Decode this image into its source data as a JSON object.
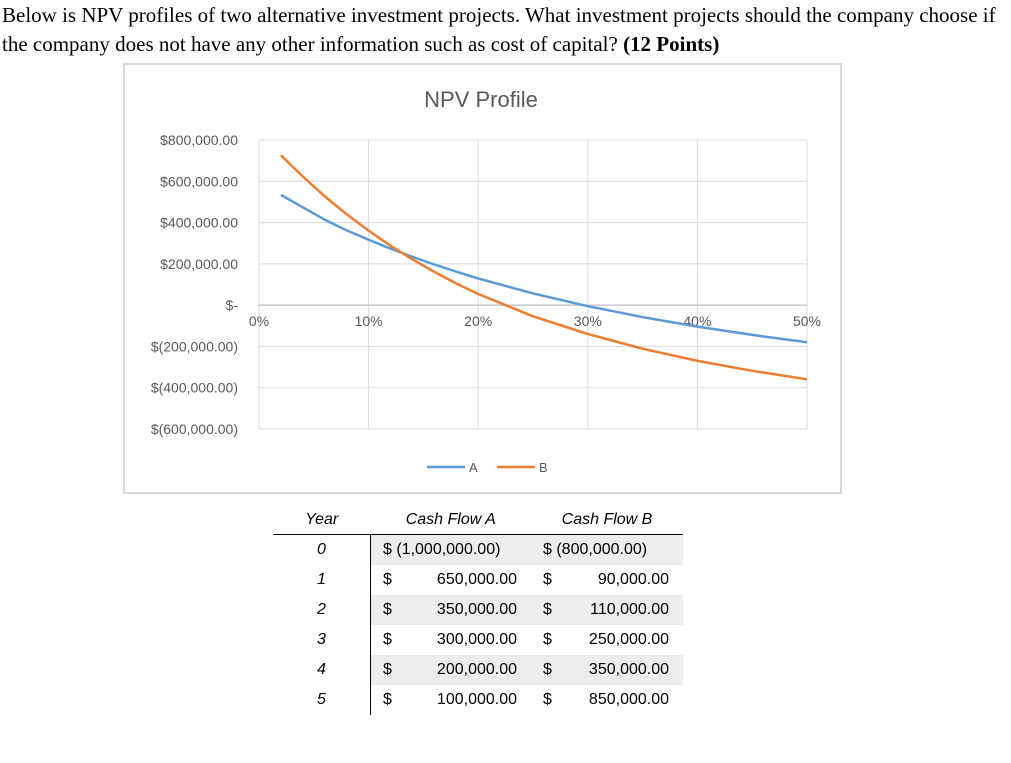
{
  "question": {
    "text": "Below is NPV profiles of two alternative investment projects. What investment projects should the company choose if the company does not have any other information such as cost of capital?",
    "points": "(12 Points)"
  },
  "colors": {
    "series_a": "#5b9bd5",
    "series_b": "#ed7d31",
    "grid": "#d9d9d9",
    "axis": "#bfbfbf",
    "text": "#595959"
  },
  "chart_data": {
    "type": "line",
    "title": "NPV Profile",
    "xlabel": "",
    "ylabel": "",
    "xlim": [
      0,
      50
    ],
    "ylim": [
      -600000,
      800000
    ],
    "x_ticks": [
      "0%",
      "10%",
      "20%",
      "30%",
      "40%",
      "50%"
    ],
    "y_ticks": [
      "$800,000.00",
      "$600,000.00",
      "$400,000.00",
      "$200,000.00",
      "$-",
      "$(200,000.00)",
      "$(400,000.00)",
      "$(600,000.00)"
    ],
    "y_tick_values": [
      800000,
      600000,
      400000,
      200000,
      0,
      -200000,
      -400000,
      -600000
    ],
    "grid": true,
    "legend_position": "bottom",
    "series": [
      {
        "name": "A",
        "color": "#5b9bd5",
        "x": [
          2,
          4,
          6,
          8,
          10,
          12,
          14,
          16,
          18,
          20,
          25,
          30,
          35,
          40,
          45,
          50
        ],
        "y": [
          534000,
          474000,
          414000,
          362000,
          317000,
          274000,
          234000,
          197000,
          162000,
          129000,
          57000,
          -5000,
          -58000,
          -104000,
          -144000,
          -180000
        ]
      },
      {
        "name": "B",
        "color": "#ed7d31",
        "x": [
          2,
          4,
          6,
          8,
          10,
          12,
          14,
          16,
          18,
          20,
          25,
          30,
          35,
          40,
          45,
          50
        ],
        "y": [
          726000,
          623000,
          527000,
          440000,
          361000,
          288000,
          222000,
          161000,
          105000,
          54000,
          -54000,
          -140000,
          -211000,
          -270000,
          -318000,
          -359000
        ]
      }
    ]
  },
  "table": {
    "headers": [
      "Year",
      "Cash Flow A",
      "Cash Flow B"
    ],
    "rows": [
      {
        "year": "0",
        "a": "$ (1,000,000.00)",
        "b": "$ (800,000.00)"
      },
      {
        "year": "1",
        "a_cur": "$",
        "a_val": "650,000.00",
        "b_cur": "$",
        "b_val": "90,000.00"
      },
      {
        "year": "2",
        "a_cur": "$",
        "a_val": "350,000.00",
        "b_cur": "$",
        "b_val": "110,000.00"
      },
      {
        "year": "3",
        "a_cur": "$",
        "a_val": "300,000.00",
        "b_cur": "$",
        "b_val": "250,000.00"
      },
      {
        "year": "4",
        "a_cur": "$",
        "a_val": "200,000.00",
        "b_cur": "$",
        "b_val": "350,000.00"
      },
      {
        "year": "5",
        "a_cur": "$",
        "a_val": "100,000.00",
        "b_cur": "$",
        "b_val": "850,000.00"
      }
    ]
  }
}
